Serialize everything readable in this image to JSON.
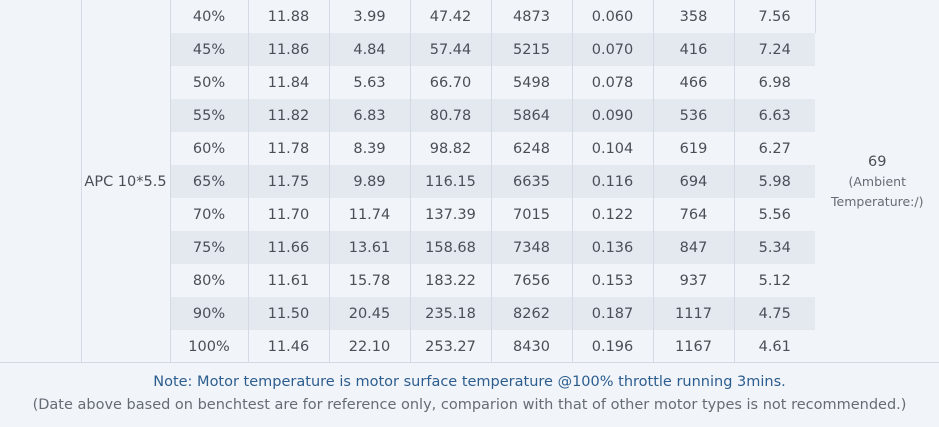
{
  "prop": "APC 10*5.5",
  "temperature": {
    "value": "69",
    "sub1": "(Ambient",
    "sub2": "Temperature:/)"
  },
  "rows": [
    [
      "40%",
      "11.88",
      "3.99",
      "47.42",
      "4873",
      "0.060",
      "358",
      "7.56"
    ],
    [
      "45%",
      "11.86",
      "4.84",
      "57.44",
      "5215",
      "0.070",
      "416",
      "7.24"
    ],
    [
      "50%",
      "11.84",
      "5.63",
      "66.70",
      "5498",
      "0.078",
      "466",
      "6.98"
    ],
    [
      "55%",
      "11.82",
      "6.83",
      "80.78",
      "5864",
      "0.090",
      "536",
      "6.63"
    ],
    [
      "60%",
      "11.78",
      "8.39",
      "98.82",
      "6248",
      "0.104",
      "619",
      "6.27"
    ],
    [
      "65%",
      "11.75",
      "9.89",
      "116.15",
      "6635",
      "0.116",
      "694",
      "5.98"
    ],
    [
      "70%",
      "11.70",
      "11.74",
      "137.39",
      "7015",
      "0.122",
      "764",
      "5.56"
    ],
    [
      "75%",
      "11.66",
      "13.61",
      "158.68",
      "7348",
      "0.136",
      "847",
      "5.34"
    ],
    [
      "80%",
      "11.61",
      "15.78",
      "183.22",
      "7656",
      "0.153",
      "937",
      "5.12"
    ],
    [
      "90%",
      "11.50",
      "20.45",
      "235.18",
      "8262",
      "0.187",
      "1117",
      "4.75"
    ],
    [
      "100%",
      "11.46",
      "22.10",
      "253.27",
      "8430",
      "0.196",
      "1167",
      "4.61"
    ]
  ],
  "notes": {
    "line1": "Note: Motor temperature is motor surface temperature @100% throttle running 3mins.",
    "line2": "(Date above based on benchtest are for reference only, comparion with that of other motor types is not recommended.)"
  }
}
